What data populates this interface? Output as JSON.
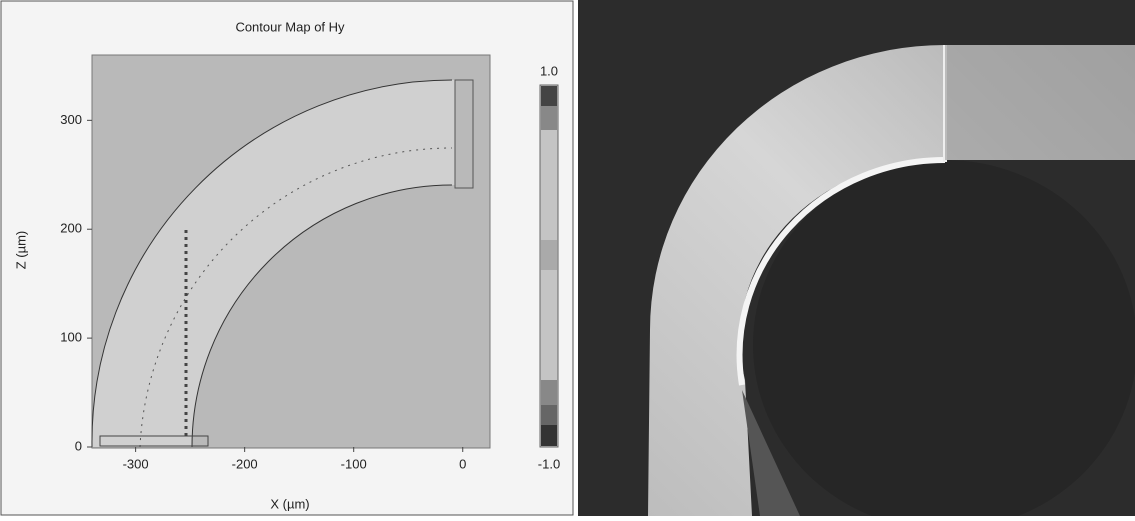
{
  "chart_data": {
    "type": "contour",
    "title": "Contour Map of Hy",
    "xlabel": "X (µm)",
    "ylabel": "Z (µm)",
    "xlim": [
      -340,
      25
    ],
    "ylim": [
      0,
      360
    ],
    "xticks": [
      -300,
      -200,
      -100,
      0
    ],
    "yticks": [
      0,
      100,
      200,
      300
    ],
    "colorbar_ticks": [
      {
        "value": 1,
        "label": "1.0"
      },
      {
        "value": -1,
        "label": "-1.0"
      }
    ]
  }
}
